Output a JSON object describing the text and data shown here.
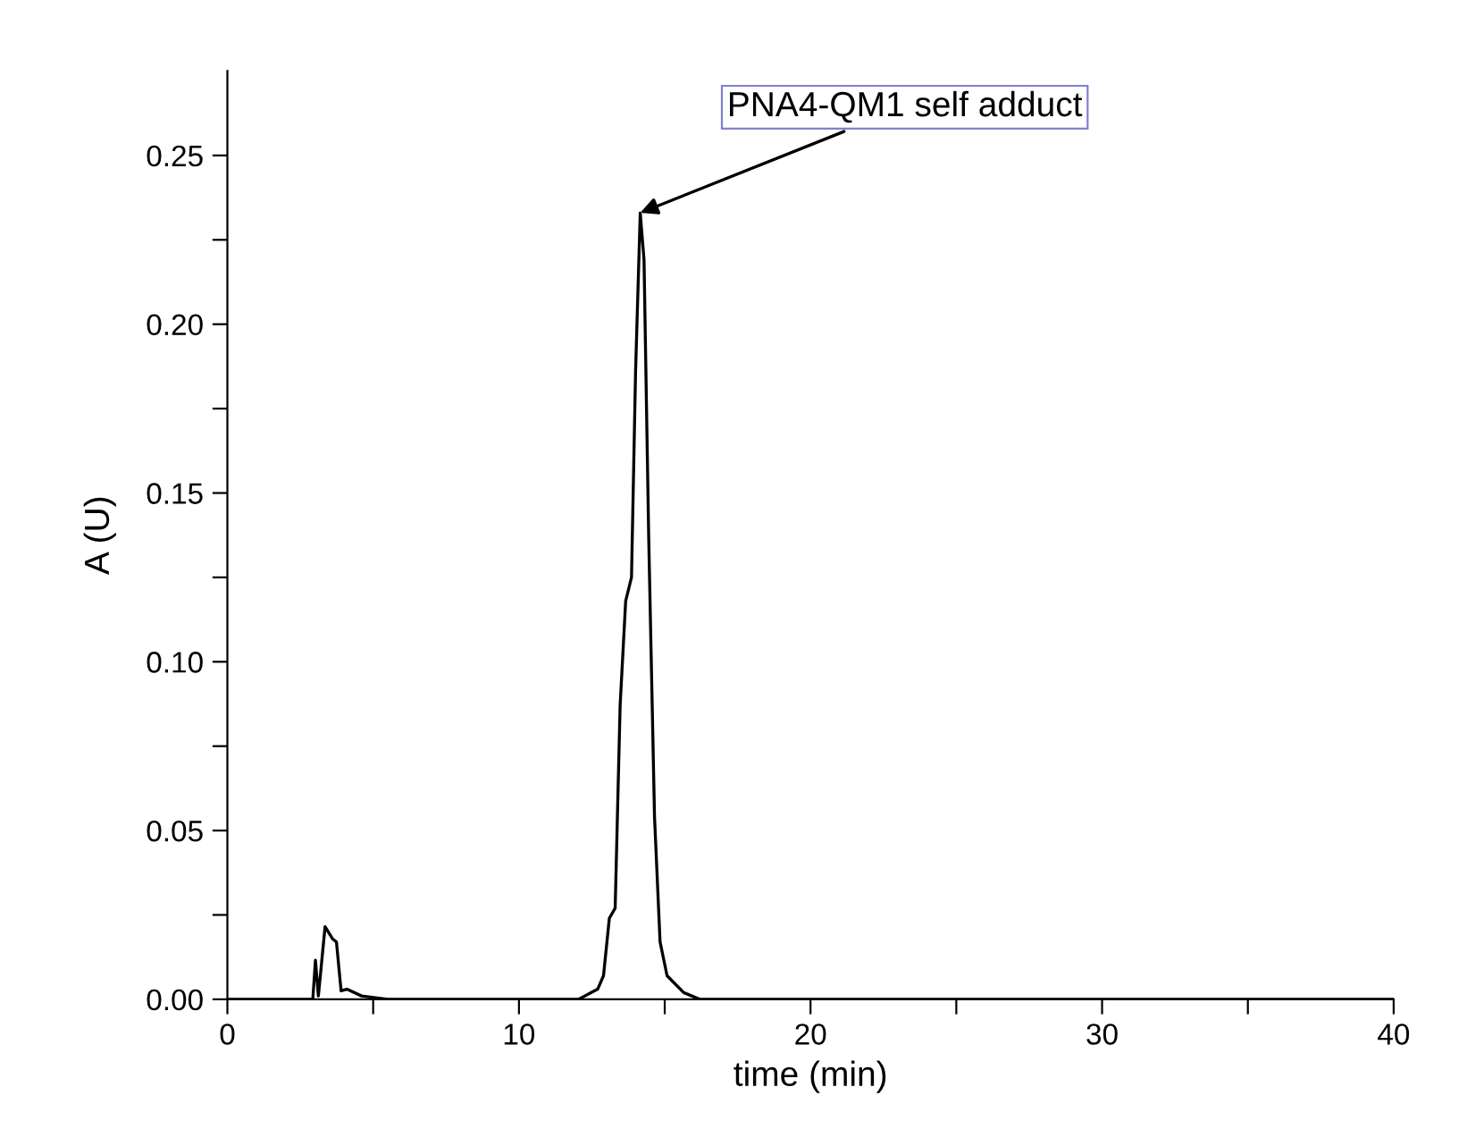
{
  "chart_data": {
    "type": "line",
    "xlabel": "time (min)",
    "ylabel": "A (U)",
    "x": [
      0,
      2.5,
      2.93,
      3.02,
      3.12,
      3.2,
      3.35,
      3.6,
      3.74,
      3.9,
      4.1,
      4.6,
      5.5,
      8,
      11,
      12.04,
      12.7,
      12.9,
      13.1,
      13.3,
      13.47,
      13.66,
      13.86,
      14.0,
      14.16,
      14.29,
      14.45,
      14.65,
      14.84,
      15.08,
      15.65,
      16.2,
      20,
      25,
      30,
      35,
      40
    ],
    "series": [
      {
        "color": "#000000",
        "values": [
          0,
          0,
          0,
          0.0116,
          0.001,
          0.008,
          0.0215,
          0.018,
          0.017,
          0.0025,
          0.003,
          0.001,
          0,
          0,
          0,
          0,
          0.003,
          0.007,
          0.024,
          0.027,
          0.087,
          0.118,
          0.125,
          0.186,
          0.233,
          0.219,
          0.137,
          0.054,
          0.017,
          0.007,
          0.002,
          0,
          0,
          0,
          0,
          0,
          0
        ]
      }
    ],
    "xlim": [
      0,
      40
    ],
    "ylim": [
      0,
      0.275
    ],
    "xticks": [
      0,
      {
        "value": 5,
        "label": null
      },
      10,
      {
        "value": 15,
        "label": null
      },
      20,
      {
        "value": 25,
        "label": null
      },
      30,
      {
        "value": 35,
        "label": null
      },
      40
    ],
    "yticks": [
      {
        "value": 0,
        "label": "0.00"
      },
      {
        "value": 0.025,
        "label": null
      },
      {
        "value": 0.05,
        "label": "0.05"
      },
      {
        "value": 0.075,
        "label": null
      },
      {
        "value": 0.1,
        "label": "0.10"
      },
      {
        "value": 0.125,
        "label": null
      },
      {
        "value": 0.15,
        "label": "0.15"
      },
      {
        "value": 0.175,
        "label": null
      },
      {
        "value": 0.2,
        "label": "0.20"
      },
      {
        "value": 0.225,
        "label": null
      },
      {
        "value": 0.25,
        "label": "0.25"
      }
    ],
    "annotations": [
      {
        "text": "PNA4-QM1 self adduct",
        "x": 14.16,
        "y": 0.233
      }
    ],
    "grid": false,
    "legend": false,
    "marker": "none",
    "line_style": "solid"
  }
}
